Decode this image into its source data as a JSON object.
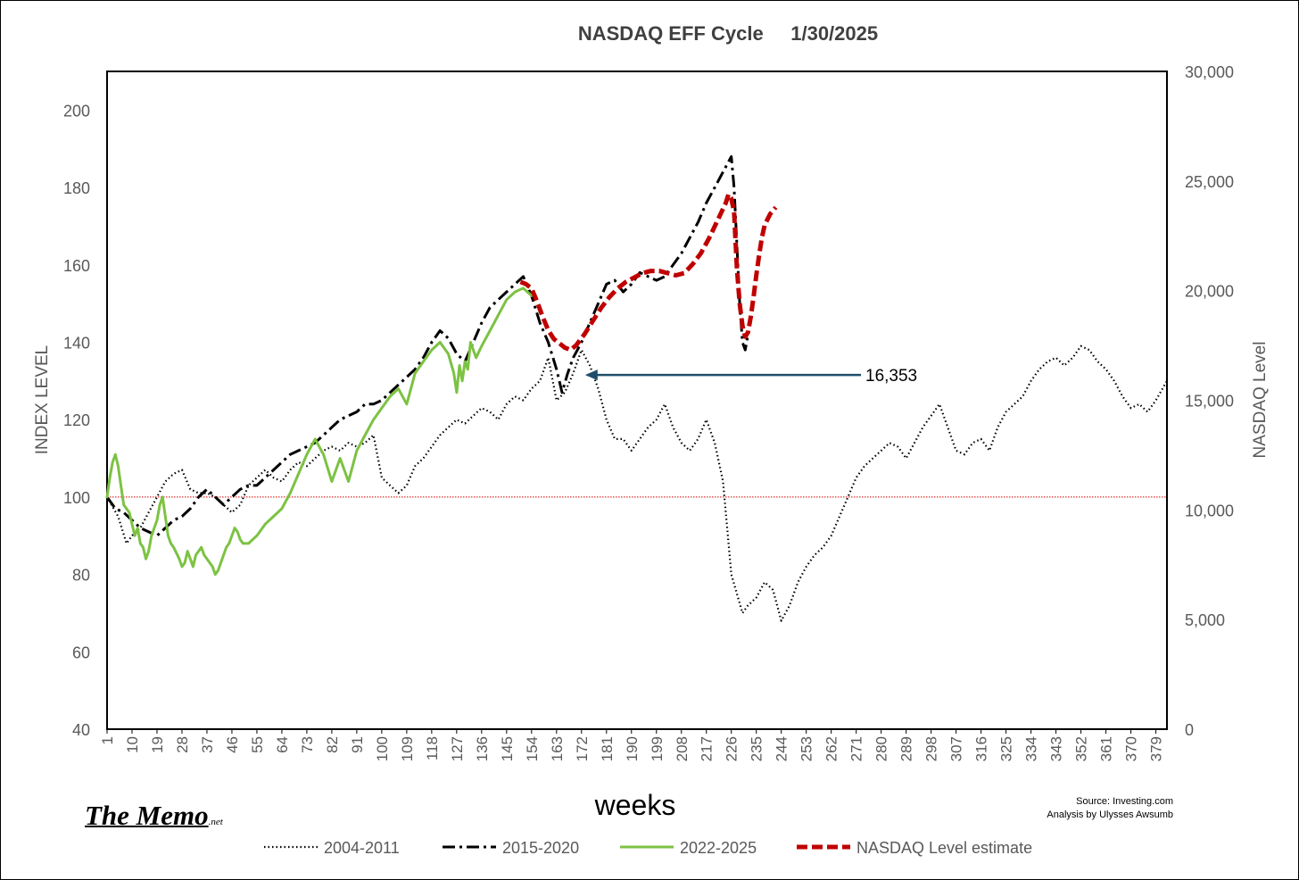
{
  "logo": {
    "main": "The Memo",
    "suffix": ".net"
  },
  "source": {
    "line1": "Source: Investing.com",
    "line2": "Analysis by Ulysses Awsumb"
  },
  "chart_data": {
    "type": "line",
    "title": "NASDAQ EFF Cycle     1/30/2025",
    "xlabel": "weeks",
    "ylabel": "INDEX LEVEL",
    "y2label": "NASDAQ Level",
    "xlim": [
      1,
      383
    ],
    "ylim": [
      40,
      210
    ],
    "y2lim": [
      0,
      30000
    ],
    "x_ticks": [
      1,
      10,
      19,
      28,
      37,
      46,
      55,
      64,
      73,
      82,
      91,
      100,
      109,
      118,
      127,
      136,
      145,
      154,
      163,
      172,
      181,
      190,
      199,
      208,
      217,
      226,
      235,
      244,
      253,
      262,
      271,
      280,
      289,
      298,
      307,
      316,
      325,
      334,
      343,
      352,
      361,
      370,
      379
    ],
    "y_ticks": [
      40,
      60,
      80,
      100,
      120,
      140,
      160,
      180,
      200
    ],
    "y2_ticks": [
      0,
      5000,
      10000,
      15000,
      20000,
      25000,
      30000
    ],
    "y2_tick_labels": [
      "0",
      "5,000",
      "10,000",
      "15,000",
      "20,000",
      "25,000",
      "30,000"
    ],
    "reference_line": {
      "y": 100,
      "color": "#e03030"
    },
    "annotation": {
      "text": "16,353",
      "x": 172,
      "y": 132
    },
    "legend_position": "bottom",
    "series": [
      {
        "name": "2004-2011",
        "color": "#000000",
        "style": "dotted",
        "x": [
          1,
          5,
          8,
          10,
          13,
          16,
          19,
          22,
          25,
          28,
          31,
          34,
          37,
          40,
          43,
          46,
          49,
          52,
          55,
          58,
          61,
          64,
          67,
          70,
          73,
          76,
          79,
          82,
          85,
          88,
          91,
          94,
          97,
          100,
          103,
          106,
          109,
          112,
          115,
          118,
          121,
          124,
          127,
          130,
          133,
          136,
          139,
          142,
          145,
          148,
          151,
          154,
          157,
          160,
          163,
          166,
          169,
          172,
          175,
          178,
          181,
          184,
          187,
          190,
          193,
          196,
          199,
          202,
          205,
          208,
          211,
          214,
          217,
          220,
          223,
          226,
          228,
          230,
          232,
          235,
          238,
          241,
          244,
          247,
          250,
          253,
          256,
          259,
          262,
          265,
          268,
          271,
          274,
          277,
          280,
          283,
          286,
          289,
          292,
          295,
          298,
          301,
          304,
          307,
          310,
          313,
          316,
          319,
          322,
          325,
          328,
          331,
          334,
          337,
          340,
          343,
          346,
          349,
          352,
          355,
          358,
          361,
          364,
          367,
          370,
          373,
          376,
          379,
          383
        ],
        "y": [
          100,
          95,
          88,
          90,
          92,
          96,
          100,
          104,
          106,
          107,
          102,
          101,
          101,
          100,
          98,
          96,
          98,
          103,
          105,
          107,
          105,
          104,
          107,
          109,
          108,
          110,
          112,
          113,
          112,
          114,
          113,
          114,
          116,
          105,
          103,
          101,
          103,
          108,
          110,
          113,
          116,
          118,
          120,
          119,
          121,
          123,
          122,
          120,
          124,
          126,
          125,
          128,
          130,
          136,
          125,
          127,
          132,
          138,
          134,
          128,
          120,
          115,
          115,
          112,
          115,
          118,
          120,
          124,
          118,
          114,
          112,
          115,
          120,
          114,
          104,
          80,
          75,
          70,
          72,
          74,
          78,
          76,
          68,
          72,
          78,
          82,
          85,
          87,
          90,
          95,
          100,
          105,
          108,
          110,
          112,
          114,
          113,
          110,
          114,
          118,
          121,
          124,
          118,
          112,
          111,
          114,
          115,
          112,
          118,
          122,
          124,
          126,
          130,
          133,
          135,
          136,
          134,
          136,
          139,
          138,
          135,
          133,
          130,
          126,
          123,
          124,
          122,
          125,
          130
        ]
      },
      {
        "name": "2015-2020",
        "color": "#000000",
        "style": "dashdot",
        "x": [
          1,
          4,
          7,
          10,
          13,
          16,
          19,
          22,
          25,
          28,
          31,
          34,
          37,
          40,
          43,
          46,
          49,
          52,
          55,
          58,
          61,
          64,
          67,
          70,
          73,
          76,
          79,
          82,
          85,
          88,
          91,
          94,
          97,
          100,
          103,
          106,
          109,
          112,
          115,
          118,
          121,
          124,
          127,
          130,
          133,
          136,
          139,
          142,
          145,
          148,
          151,
          154,
          157,
          160,
          163,
          165,
          167,
          169,
          172,
          175,
          178,
          181,
          184,
          187,
          190,
          193,
          196,
          199,
          202,
          205,
          208,
          211,
          214,
          217,
          220,
          223,
          226,
          227,
          228,
          229,
          230,
          231,
          232
        ],
        "y": [
          100,
          97,
          96,
          94,
          92,
          91,
          90,
          92,
          94,
          95,
          97,
          100,
          102,
          100,
          98,
          100,
          102,
          103,
          103,
          105,
          107,
          109,
          111,
          112,
          113,
          114,
          116,
          118,
          120,
          121,
          122,
          124,
          124,
          125,
          127,
          129,
          131,
          133,
          136,
          140,
          143,
          141,
          137,
          135,
          140,
          145,
          149,
          151,
          153,
          155,
          157,
          152,
          145,
          140,
          133,
          127,
          132,
          136,
          140,
          145,
          150,
          155,
          156,
          153,
          155,
          158,
          157,
          156,
          157,
          160,
          163,
          167,
          171,
          176,
          180,
          184,
          188,
          180,
          165,
          150,
          140,
          138,
          142
        ]
      },
      {
        "name": "2022-2025",
        "color": "#7cc243",
        "style": "solid",
        "x": [
          1,
          2,
          3,
          4,
          5,
          6,
          7,
          9,
          10,
          11,
          12,
          13,
          14,
          15,
          16,
          17,
          19,
          20,
          21,
          22,
          23,
          24,
          25,
          27,
          28,
          29,
          30,
          31,
          32,
          33,
          34,
          35,
          36,
          37,
          38,
          39,
          40,
          41,
          42,
          43,
          44,
          45,
          46,
          47,
          48,
          49,
          50,
          52,
          55,
          58,
          61,
          64,
          67,
          70,
          73,
          76,
          79,
          82,
          85,
          88,
          91,
          94,
          97,
          100,
          103,
          106,
          109,
          112,
          115,
          118,
          121,
          124,
          126,
          127,
          128,
          129,
          130,
          131,
          132,
          134,
          136,
          139,
          142,
          145,
          148,
          151,
          154
        ],
        "y": [
          100,
          105,
          109,
          111,
          108,
          103,
          98,
          96,
          93,
          90,
          92,
          88,
          87,
          84,
          86,
          90,
          94,
          98,
          100,
          95,
          90,
          88,
          87,
          84,
          82,
          83,
          86,
          84,
          82,
          85,
          86,
          87,
          85,
          84,
          83,
          82,
          80,
          81,
          83,
          85,
          87,
          88,
          90,
          92,
          91,
          89,
          88,
          88,
          90,
          93,
          95,
          97,
          101,
          106,
          111,
          115,
          111,
          104,
          110,
          104,
          112,
          116,
          120,
          123,
          126,
          128,
          124,
          132,
          135,
          138,
          140,
          137,
          132,
          127,
          134,
          130,
          135,
          133,
          140,
          136,
          139,
          143,
          147,
          151,
          153,
          154,
          152
        ]
      },
      {
        "name": "NASDAQ Level estimate",
        "color": "#c00000",
        "style": "dashed",
        "x": [
          150,
          152,
          154,
          156,
          158,
          160,
          162,
          164,
          166,
          168,
          170,
          173,
          176,
          179,
          182,
          185,
          188,
          191,
          194,
          197,
          200,
          203,
          206,
          209,
          212,
          215,
          218,
          221,
          224,
          225,
          226,
          227,
          228,
          229,
          230,
          231,
          232,
          233,
          234,
          235,
          236,
          237,
          238,
          240,
          242
        ],
        "y": [
          20400,
          20300,
          20100,
          19500,
          18800,
          18200,
          17800,
          17600,
          17400,
          17300,
          17500,
          18000,
          18600,
          19200,
          19700,
          20100,
          20400,
          20600,
          20800,
          20900,
          20900,
          20800,
          20700,
          20800,
          21200,
          21700,
          22400,
          23200,
          24000,
          24400,
          24200,
          23600,
          21000,
          19400,
          18400,
          17900,
          18100,
          18800,
          19700,
          20700,
          21600,
          22400,
          23000,
          23500,
          23800
        ]
      }
    ]
  }
}
